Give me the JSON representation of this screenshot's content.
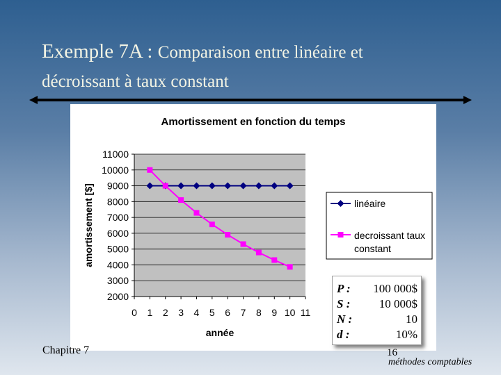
{
  "slide": {
    "title_main": "Exemple 7A : ",
    "title_rest": "Comparaison entre linéaire et",
    "title_line2": "décroissant à taux constant",
    "footer_left": "Chapitre 7",
    "footer_page": "16",
    "footer_right": "méthodes comptables"
  },
  "params": [
    {
      "key": "P :",
      "value": "100 000$"
    },
    {
      "key": "S :",
      "value": "10 000$"
    },
    {
      "key": "N :",
      "value": "10"
    },
    {
      "key": "d :",
      "value": "10%"
    }
  ],
  "chart_data": {
    "type": "line",
    "title": "Amortissement en fonction du temps",
    "xlabel": "année",
    "ylabel": "amortissement [$]",
    "xlim": [
      0,
      11
    ],
    "ylim": [
      2000,
      11000
    ],
    "x_ticks": [
      0,
      1,
      2,
      3,
      4,
      5,
      6,
      7,
      8,
      9,
      10,
      11
    ],
    "y_ticks": [
      2000,
      3000,
      4000,
      5000,
      6000,
      7000,
      8000,
      9000,
      10000,
      11000
    ],
    "grid": true,
    "plot_background": "#c0c0c0",
    "legend_position": "right",
    "x": [
      1,
      2,
      3,
      4,
      5,
      6,
      7,
      8,
      9,
      10
    ],
    "series": [
      {
        "name": "linéaire",
        "color": "#000080",
        "marker": "diamond",
        "values": [
          9000,
          9000,
          9000,
          9000,
          9000,
          9000,
          9000,
          9000,
          9000,
          9000
        ]
      },
      {
        "name": "decroissant taux constant",
        "color": "#ff00ff",
        "marker": "square",
        "values": [
          10000,
          9000,
          8100,
          7290,
          6561,
          5905,
          5314,
          4783,
          4305,
          3874
        ]
      }
    ]
  }
}
